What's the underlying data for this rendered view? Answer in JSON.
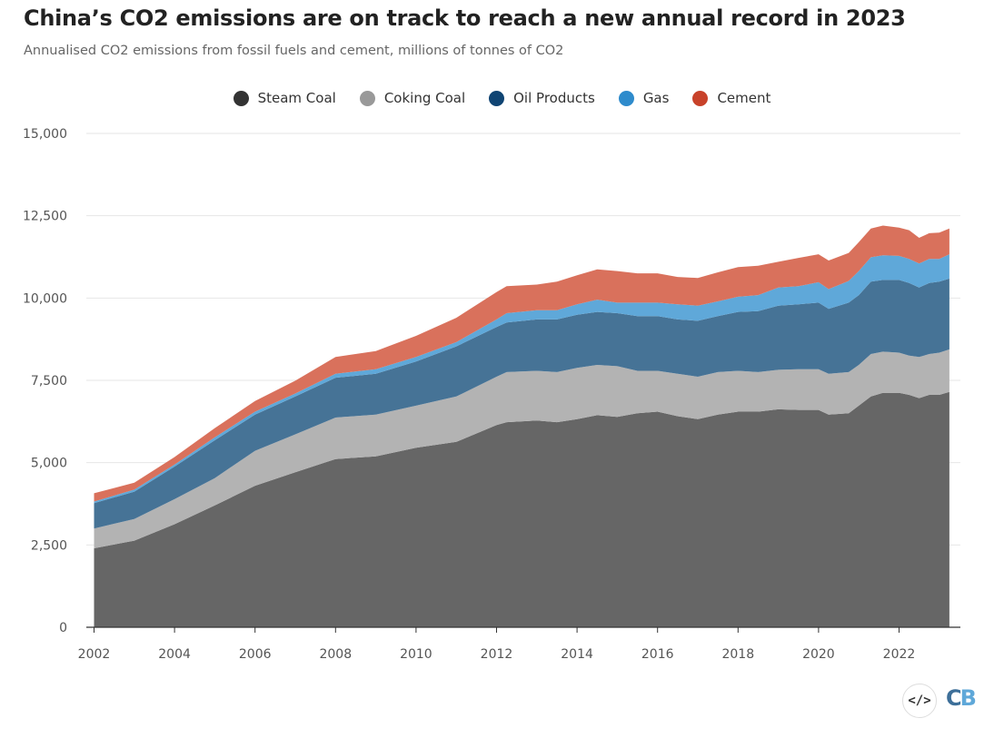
{
  "chart_data": {
    "type": "area",
    "stacked": true,
    "title": "China’s CO2 emissions are on track to reach a new annual record in 2023",
    "subtitle": "Annualised CO2 emissions from fossil fuels and cement, millions of tonnes of CO2",
    "xlabel": "",
    "ylabel": "",
    "ylim": [
      0,
      15000
    ],
    "xlim": [
      2002,
      2023.25
    ],
    "grid": true,
    "legend_placement": "top-center",
    "yticks": [
      0,
      2500,
      5000,
      7500,
      10000,
      12500,
      15000
    ],
    "ytick_labels": [
      "0",
      "2,500",
      "5,000",
      "7,500",
      "10,000",
      "12,500",
      "15,000"
    ],
    "xticks": [
      2002,
      2004,
      2006,
      2008,
      2010,
      2012,
      2014,
      2016,
      2018,
      2020,
      2022
    ],
    "xtick_labels": [
      "2002",
      "2004",
      "2006",
      "2008",
      "2010",
      "2012",
      "2014",
      "2016",
      "2018",
      "2020",
      "2022"
    ],
    "x": [
      2002,
      2003,
      2004,
      2005,
      2006,
      2007,
      2008,
      2009,
      2010,
      2011,
      2012,
      2012.25,
      2013,
      2013.5,
      2014,
      2014.5,
      2015,
      2015.5,
      2016,
      2016.5,
      2017,
      2017.5,
      2018,
      2018.5,
      2019,
      2019.5,
      2020,
      2020.25,
      2020.75,
      2021,
      2021.3,
      2021.6,
      2022,
      2022.25,
      2022.5,
      2022.75,
      2023,
      2023.25
    ],
    "series": [
      {
        "name": "Steam Coal",
        "color": "#666666",
        "legend_color": "#333333",
        "values": [
          2400,
          2630,
          3130,
          3700,
          4300,
          4710,
          5110,
          5190,
          5450,
          5630,
          6140,
          6230,
          6280,
          6230,
          6320,
          6440,
          6390,
          6500,
          6550,
          6410,
          6320,
          6460,
          6550,
          6550,
          6620,
          6600,
          6600,
          6460,
          6500,
          6730,
          7010,
          7120,
          7120,
          7060,
          6960,
          7060,
          7060,
          7150
        ]
      },
      {
        "name": "Coking Coal",
        "color": "#b3b3b3",
        "legend_color": "#999999",
        "values": [
          600,
          660,
          760,
          830,
          1060,
          1150,
          1260,
          1270,
          1280,
          1380,
          1470,
          1520,
          1510,
          1520,
          1560,
          1530,
          1540,
          1290,
          1240,
          1290,
          1290,
          1290,
          1240,
          1200,
          1200,
          1240,
          1240,
          1240,
          1250,
          1240,
          1290,
          1250,
          1220,
          1190,
          1250,
          1240,
          1280,
          1290
        ]
      },
      {
        "name": "Oil Products",
        "color": "#467396",
        "legend_color": "#0f4473",
        "values": [
          770,
          830,
          990,
          1150,
          1100,
          1150,
          1210,
          1240,
          1340,
          1520,
          1510,
          1510,
          1560,
          1600,
          1610,
          1610,
          1610,
          1660,
          1660,
          1650,
          1700,
          1700,
          1790,
          1850,
          1950,
          1970,
          2020,
          1970,
          2110,
          2120,
          2200,
          2180,
          2210,
          2210,
          2110,
          2160,
          2160,
          2150
        ]
      },
      {
        "name": "Gas",
        "color": "#5fa8d9",
        "legend_color": "#2e8bcc",
        "values": [
          50,
          60,
          60,
          90,
          90,
          90,
          120,
          140,
          140,
          130,
          230,
          280,
          280,
          280,
          320,
          370,
          320,
          410,
          410,
          460,
          460,
          450,
          460,
          490,
          550,
          550,
          620,
          600,
          660,
          730,
          740,
          750,
          730,
          730,
          730,
          730,
          690,
          740
        ]
      },
      {
        "name": "Cement",
        "color": "#d9715c",
        "legend_color": "#c8422a",
        "values": [
          250,
          210,
          230,
          280,
          320,
          390,
          510,
          550,
          640,
          740,
          830,
          820,
          780,
          870,
          880,
          920,
          960,
          890,
          890,
          830,
          840,
          880,
          900,
          890,
          780,
          860,
          850,
          870,
          850,
          880,
          870,
          900,
          860,
          870,
          780,
          780,
          800,
          780
        ]
      }
    ]
  },
  "footer": {
    "embed_icon": "code-icon",
    "logo": "CB",
    "logo_colors": [
      "#3d6f99",
      "#5fa8d9"
    ]
  }
}
